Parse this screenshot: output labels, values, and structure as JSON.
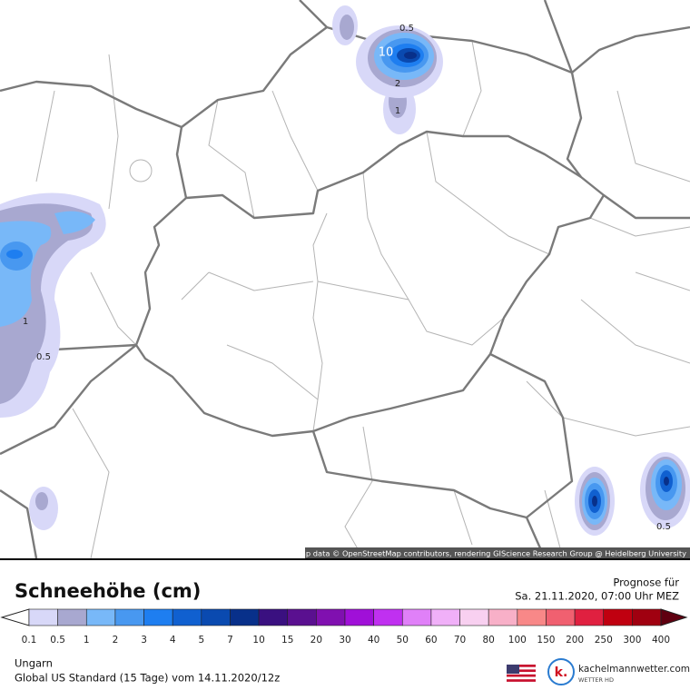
{
  "map": {
    "contour_labels": [
      "0.5",
      "10",
      "2",
      "1",
      "1",
      "0.5",
      "0.5"
    ],
    "attribution": "Map data © OpenStreetMap contributors, rendering GIScience Research Group @ Heidelberg University"
  },
  "legend": {
    "title": "Schneehöhe (cm)",
    "labels": [
      "0.1",
      "0.5",
      "1",
      "2",
      "3",
      "4",
      "5",
      "7",
      "10",
      "15",
      "20",
      "30",
      "40",
      "50",
      "60",
      "70",
      "80",
      "100",
      "150",
      "200",
      "250",
      "300",
      "400"
    ],
    "colors": [
      "#d8d8f8",
      "#a8a8d0",
      "#78b8f8",
      "#4898f0",
      "#1e7ef0",
      "#1060d0",
      "#0a4ab0",
      "#08308a",
      "#3a1080",
      "#5a1090",
      "#8010b0",
      "#a010d8",
      "#c030f0",
      "#e080f8",
      "#f0b0f8",
      "#f8d0f0",
      "#f8b0c8",
      "#f88888",
      "#f06070",
      "#e02040",
      "#c00010",
      "#a00010"
    ]
  },
  "forecast": {
    "label": "Prognose für",
    "time": "Sa. 21.11.2020, 07:00 Uhr MEZ"
  },
  "footer": {
    "region": "Ungarn",
    "model": "Global US Standard (15 Tage) vom 14.11.2020/12z",
    "brand": "kachelmannwetter.com",
    "brand_sub": "WETTER HD",
    "logo": "k."
  }
}
